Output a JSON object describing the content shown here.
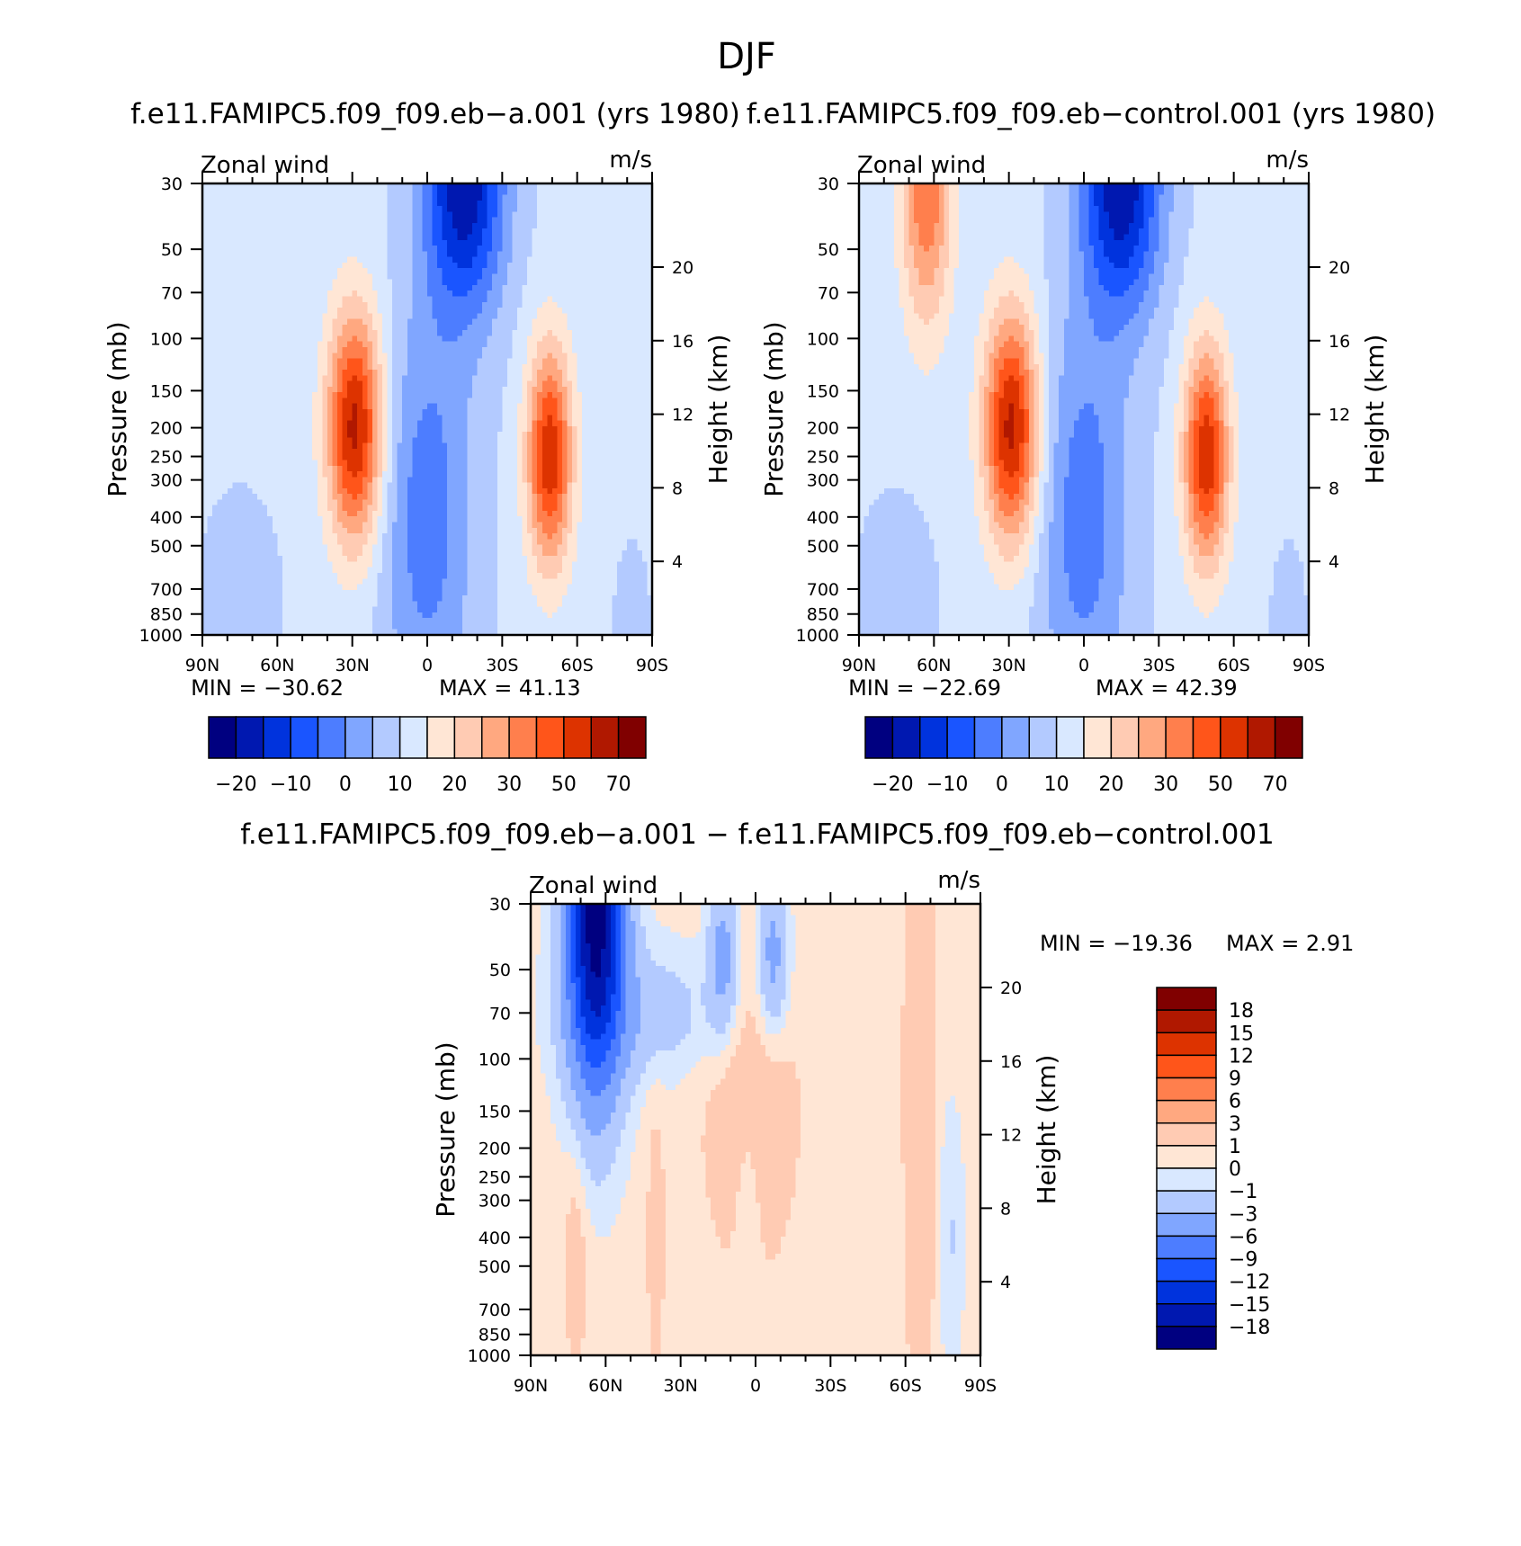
{
  "figure_title": "DJF",
  "chart_data": [
    {
      "type": "heatmap",
      "title": "f.e11.FAMIPC5.f09_f09.eb−a.001 (yrs 1980)",
      "left_string": "Zonal wind",
      "right_string": "m/s",
      "x_ticks": [
        "90N",
        "60N",
        "30N",
        "0",
        "30S",
        "60S",
        "90S"
      ],
      "x_values": [
        90,
        60,
        30,
        0,
        -30,
        -60,
        -90
      ],
      "y_label": "Pressure (mb)",
      "y_ticks": [
        "30",
        "50",
        "70",
        "100",
        "150",
        "200",
        "250",
        "300",
        "400",
        "500",
        "700",
        "850",
        "1000"
      ],
      "y_values": [
        30,
        50,
        70,
        100,
        150,
        200,
        250,
        300,
        400,
        500,
        700,
        850,
        1000
      ],
      "ylim": [
        1000,
        30
      ],
      "y2_label": "Height (km)",
      "y2_ticks": [
        "20",
        "16",
        "12",
        "8",
        "4"
      ],
      "y2_values": [
        20,
        16,
        12,
        8,
        4
      ],
      "min": -30.62,
      "max": 41.13,
      "min_text": "MIN = −30.62",
      "max_text": "MAX = 41.13",
      "colorbar_labels": [
        "−20",
        "−10",
        "0",
        "10",
        "20",
        "30",
        "50",
        "70"
      ],
      "features": [
        {
          "lat": 30,
          "p": 200,
          "value": 41,
          "kind": "northern jet max"
        },
        {
          "lat": -50,
          "p": 250,
          "value": 38,
          "kind": "southern jet max"
        },
        {
          "lat": -15,
          "p": 30,
          "value": -30,
          "kind": "tropical easterly min"
        }
      ]
    },
    {
      "type": "heatmap",
      "title": "f.e11.FAMIPC5.f09_f09.eb−control.001 (yrs 1980)",
      "left_string": "Zonal wind",
      "right_string": "m/s",
      "x_ticks": [
        "90N",
        "60N",
        "30N",
        "0",
        "30S",
        "60S",
        "90S"
      ],
      "x_values": [
        90,
        60,
        30,
        0,
        -30,
        -60,
        -90
      ],
      "y_label": "Pressure (mb)",
      "y_ticks": [
        "30",
        "50",
        "70",
        "100",
        "150",
        "200",
        "250",
        "300",
        "400",
        "500",
        "700",
        "850",
        "1000"
      ],
      "y_values": [
        30,
        50,
        70,
        100,
        150,
        200,
        250,
        300,
        400,
        500,
        700,
        850,
        1000
      ],
      "ylim": [
        1000,
        30
      ],
      "y2_label": "Height (km)",
      "y2_ticks": [
        "20",
        "16",
        "12",
        "8",
        "4"
      ],
      "y2_values": [
        20,
        16,
        12,
        8,
        4
      ],
      "min": -22.69,
      "max": 42.39,
      "min_text": "MIN = −22.69",
      "max_text": "MAX = 42.39",
      "colorbar_labels": [
        "−20",
        "−10",
        "0",
        "10",
        "20",
        "30",
        "50",
        "70"
      ],
      "features": [
        {
          "lat": 30,
          "p": 200,
          "value": 42,
          "kind": "northern jet max"
        },
        {
          "lat": -50,
          "p": 250,
          "value": 38,
          "kind": "southern jet max"
        },
        {
          "lat": 62,
          "p": 30,
          "value": 25,
          "kind": "polar night jet"
        },
        {
          "lat": -18,
          "p": 30,
          "value": -22,
          "kind": "tropical easterly min"
        }
      ]
    },
    {
      "type": "heatmap",
      "title": "f.e11.FAMIPC5.f09_f09.eb−a.001 − f.e11.FAMIPC5.f09_f09.eb−control.001",
      "left_string": "Zonal wind",
      "right_string": "m/s",
      "x_ticks": [
        "90N",
        "60N",
        "30N",
        "0",
        "30S",
        "60S",
        "90S"
      ],
      "x_values": [
        90,
        60,
        30,
        0,
        -30,
        -60,
        -90
      ],
      "y_label": "Pressure (mb)",
      "y_ticks": [
        "30",
        "50",
        "70",
        "100",
        "150",
        "200",
        "250",
        "300",
        "400",
        "500",
        "700",
        "850",
        "1000"
      ],
      "y_values": [
        30,
        50,
        70,
        100,
        150,
        200,
        250,
        300,
        400,
        500,
        700,
        850,
        1000
      ],
      "ylim": [
        1000,
        30
      ],
      "y2_label": "Height (km)",
      "y2_ticks": [
        "20",
        "16",
        "12",
        "8",
        "4"
      ],
      "y2_values": [
        20,
        16,
        12,
        8,
        4
      ],
      "min": -19.36,
      "max": 2.91,
      "min_text": "MIN = −19.36",
      "max_text": "MAX = 2.91",
      "colorbar_labels": [
        "18",
        "15",
        "12",
        "9",
        "6",
        "3",
        "1",
        "0",
        "−1",
        "−3",
        "−6",
        "−9",
        "−12",
        "−15",
        "−18"
      ],
      "features": [
        {
          "lat": 65,
          "p": 35,
          "value": -19,
          "kind": "difference min"
        },
        {
          "lat": -65,
          "p": 150,
          "value": 2.5,
          "kind": "difference max"
        }
      ]
    }
  ],
  "palette": [
    "#000080",
    "#0018b0",
    "#0033dd",
    "#1a55ff",
    "#4d7dff",
    "#80a6ff",
    "#b3caff",
    "#d9e8ff",
    "#ffe6d5",
    "#ffcbb3",
    "#ffa880",
    "#ff7f4d",
    "#ff551a",
    "#dd3300",
    "#b01800",
    "#800000"
  ]
}
